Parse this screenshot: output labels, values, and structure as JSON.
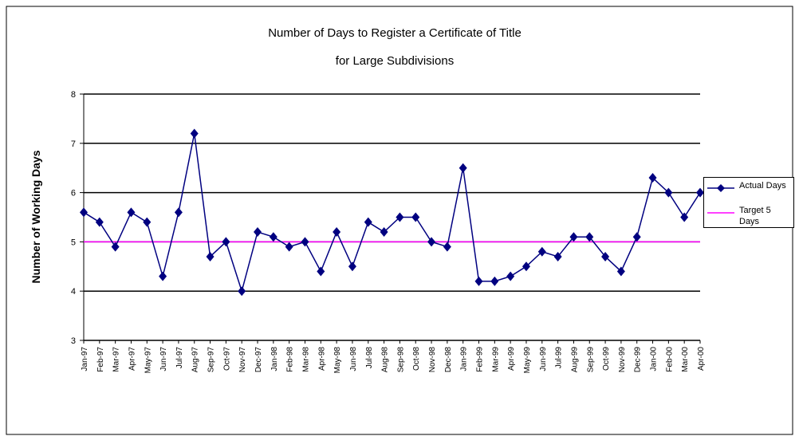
{
  "chart_data": {
    "type": "line",
    "title": "Number of Days to Register a Certificate of Title",
    "subtitle": "for Large Subdivisions",
    "y_label": "Number of Working Days",
    "categories": [
      "Jan-97",
      "Feb-97",
      "Mar-97",
      "Apr-97",
      "May-97",
      "Jun-97",
      "Jul-97",
      "Aug-97",
      "Sep-97",
      "Oct-97",
      "Nov-97",
      "Dec-97",
      "Jan-98",
      "Feb-98",
      "Mar-98",
      "Apr-98",
      "May-98",
      "Jun-98",
      "Jul-98",
      "Aug-98",
      "Sep-98",
      "Oct-98",
      "Nov-98",
      "Dec-98",
      "Jan-99",
      "Feb-99",
      "Mar-99",
      "Apr-99",
      "May-99",
      "Jun-99",
      "Jul-99",
      "Aug-99",
      "Sep-99",
      "Oct-99",
      "Nov-99",
      "Dec-99",
      "Jan-00",
      "Feb-00",
      "Mar-00",
      "Apr-00"
    ],
    "series": [
      {
        "name": "Actual Days",
        "color": "#000080",
        "marker": "diamond",
        "values": [
          5.6,
          5.4,
          4.9,
          5.6,
          5.4,
          4.3,
          5.6,
          7.2,
          4.7,
          5.0,
          4.0,
          5.2,
          5.1,
          4.9,
          5.0,
          4.4,
          5.2,
          4.5,
          5.4,
          5.2,
          5.5,
          5.5,
          5.0,
          4.9,
          6.5,
          4.2,
          4.2,
          4.3,
          4.5,
          4.8,
          4.7,
          5.1,
          5.1,
          4.7,
          4.4,
          5.1,
          6.3,
          6.0,
          5.5,
          6.0
        ]
      },
      {
        "name": "Target 5 Days",
        "color": "#ff00ff",
        "marker": "none",
        "values": [
          5,
          5,
          5,
          5,
          5,
          5,
          5,
          5,
          5,
          5,
          5,
          5,
          5,
          5,
          5,
          5,
          5,
          5,
          5,
          5,
          5,
          5,
          5,
          5,
          5,
          5,
          5,
          5,
          5,
          5,
          5,
          5,
          5,
          5,
          5,
          5,
          5,
          5,
          5,
          5
        ]
      }
    ],
    "ylim": [
      3,
      8
    ],
    "yticks": [
      3,
      4,
      5,
      6,
      7,
      8
    ],
    "grid": true,
    "legend": "right"
  }
}
